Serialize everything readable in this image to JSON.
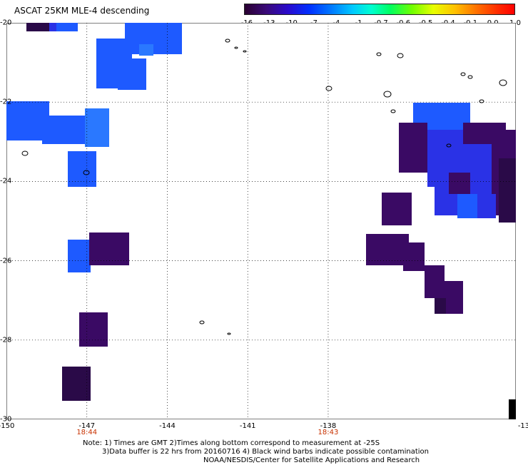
{
  "title": "ASCAT 25KM MLE-4 descending",
  "colorbar": {
    "labels": [
      "-16",
      "-13",
      "-10",
      "-7",
      "-4",
      "-1",
      "-0.7",
      "-0.6",
      "-0.5",
      "-0.4",
      "-0.1",
      "0.0",
      "1.0"
    ]
  },
  "axes": {
    "x_ticks": [
      "-150",
      "-147",
      "-144",
      "-141",
      "-138",
      "-13"
    ],
    "y_ticks": [
      "-20",
      "-22",
      "-24",
      "-26",
      "-28",
      "-30"
    ],
    "time_labels": [
      {
        "text": "18:44",
        "lon": -147
      },
      {
        "text": "18:43",
        "lon": -138
      }
    ]
  },
  "notes": {
    "line1": "Note: 1) Times are GMT 2)Times along bottom correspond to measurement at -25S",
    "line2": "3)Data buffer is 22 hrs from 20160716 4) Black wind barbs indicate possible contamination",
    "line3": "NOAA/NESDIS/Center for Satellite Applications and Research"
  },
  "colors": {
    "blue": "#1e5aff",
    "light_blue": "#2a78ff",
    "deep_blue": "#2a32e6",
    "purple": "#3a0a64",
    "dark_purple": "#2a0a48",
    "black": "#000000"
  }
}
